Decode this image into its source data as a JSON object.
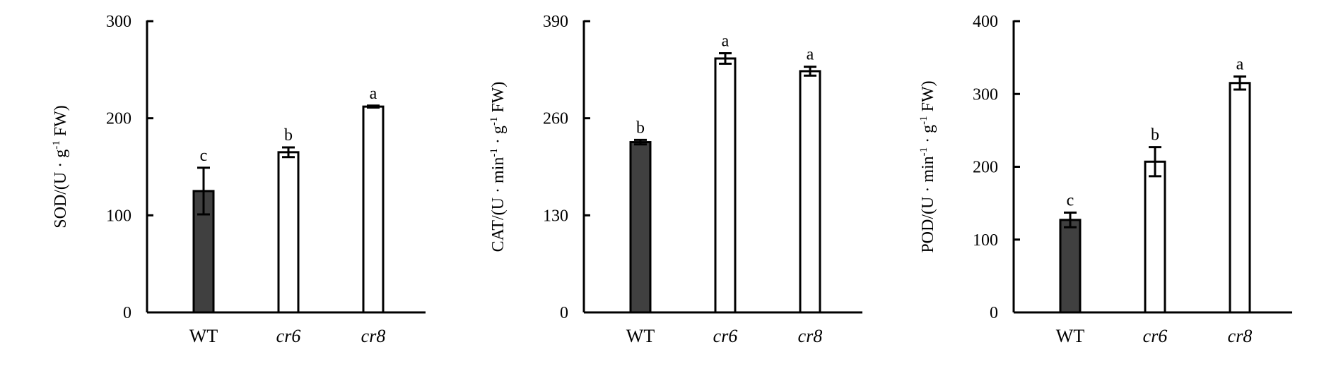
{
  "chart_data": [
    {
      "type": "bar",
      "categories": [
        "WT",
        "cr6",
        "cr8"
      ],
      "categories_italic": [
        false,
        true,
        true
      ],
      "values": [
        125,
        165,
        212
      ],
      "errors": [
        24,
        5,
        1
      ],
      "significance": [
        "c",
        "b",
        "a"
      ],
      "colors": [
        "#404040",
        "#ffffff",
        "#ffffff"
      ],
      "ylabel": {
        "pre": "SOD/(U · g",
        "sup": "-1",
        "post": " FW)"
      },
      "ylim": [
        0,
        300
      ],
      "yticks": [
        0,
        100,
        200,
        300
      ]
    },
    {
      "type": "bar",
      "categories": [
        "WT",
        "cr6",
        "cr8"
      ],
      "categories_italic": [
        false,
        true,
        true
      ],
      "values": [
        228,
        340,
        323
      ],
      "errors": [
        3,
        7,
        6
      ],
      "significance": [
        "b",
        "a",
        "a"
      ],
      "colors": [
        "#404040",
        "#ffffff",
        "#ffffff"
      ],
      "ylabel": {
        "pre": "CAT/(U · min",
        "sup": "-1",
        "mid": " · g",
        "sup2": "-1",
        "post": " FW)"
      },
      "ylim": [
        0,
        390
      ],
      "yticks": [
        0,
        130,
        260,
        390
      ]
    },
    {
      "type": "bar",
      "categories": [
        "WT",
        "cr6",
        "cr8"
      ],
      "categories_italic": [
        false,
        true,
        true
      ],
      "values": [
        127,
        207,
        315
      ],
      "errors": [
        10,
        20,
        9
      ],
      "significance": [
        "c",
        "b",
        "a"
      ],
      "colors": [
        "#404040",
        "#ffffff",
        "#ffffff"
      ],
      "ylabel": {
        "pre": "POD/(U · min",
        "sup": "-1",
        "mid": " · g",
        "sup2": "-1",
        "post": " FW)"
      },
      "ylim": [
        0,
        400
      ],
      "yticks": [
        0,
        100,
        200,
        300,
        400
      ]
    }
  ]
}
